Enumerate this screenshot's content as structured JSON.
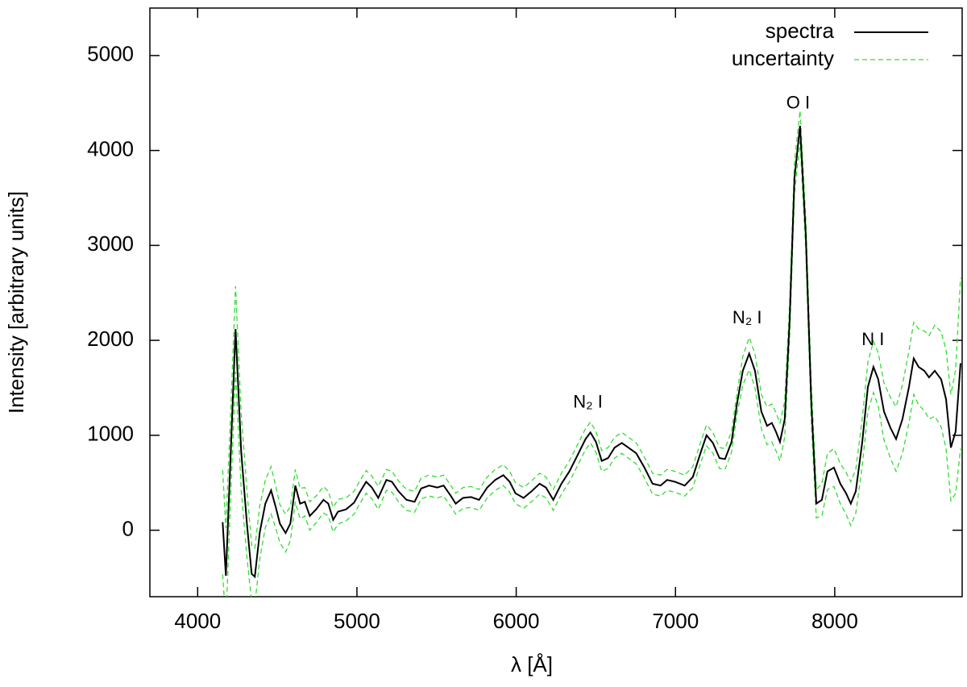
{
  "chart_data": {
    "type": "line",
    "xlabel": "λ [Å]",
    "ylabel": "Intensity [arbitrary units]",
    "xlim": [
      3700,
      8800
    ],
    "xticks": [
      4000,
      5000,
      6000,
      7000,
      8000
    ],
    "ylim": [
      -700,
      5500
    ],
    "yticks": [
      0,
      1000,
      2000,
      3000,
      4000,
      5000
    ],
    "legend": "upper right",
    "x": [
      4157,
      4177,
      4208,
      4238,
      4273,
      4309,
      4339,
      4359,
      4390,
      4425,
      4461,
      4491,
      4516,
      4552,
      4582,
      4613,
      4643,
      4673,
      4704,
      4744,
      4790,
      4820,
      4851,
      4881,
      4932,
      4982,
      5018,
      5058,
      5094,
      5134,
      5185,
      5220,
      5261,
      5311,
      5362,
      5403,
      5453,
      5504,
      5544,
      5590,
      5620,
      5666,
      5716,
      5767,
      5818,
      5868,
      5919,
      5959,
      5995,
      6046,
      6096,
      6147,
      6187,
      6233,
      6284,
      6334,
      6385,
      6435,
      6466,
      6501,
      6537,
      6577,
      6618,
      6663,
      6704,
      6754,
      6805,
      6856,
      6906,
      6947,
      6997,
      7058,
      7109,
      7160,
      7195,
      7235,
      7276,
      7311,
      7352,
      7387,
      7423,
      7463,
      7499,
      7539,
      7575,
      7605,
      7630,
      7656,
      7686,
      7716,
      7747,
      7782,
      7818,
      7853,
      7884,
      7919,
      7954,
      7995,
      8035,
      8071,
      8101,
      8132,
      8172,
      8208,
      8243,
      8273,
      8309,
      8349,
      8385,
      8425,
      8466,
      8496,
      8527,
      8562,
      8592,
      8628,
      8668,
      8699,
      8729,
      8759,
      8790
    ],
    "series": [
      {
        "name": "spectra",
        "color": "#000000",
        "values": [
          85,
          -480,
          830,
          2120,
          830,
          70,
          -460,
          -490,
          -20,
          280,
          420,
          240,
          70,
          -30,
          70,
          470,
          280,
          300,
          150,
          220,
          320,
          280,
          110,
          195,
          220,
          290,
          400,
          510,
          450,
          340,
          530,
          510,
          410,
          320,
          300,
          440,
          470,
          450,
          470,
          360,
          280,
          340,
          350,
          320,
          450,
          530,
          580,
          510,
          390,
          340,
          410,
          490,
          450,
          320,
          490,
          620,
          790,
          960,
          1030,
          930,
          730,
          760,
          870,
          920,
          870,
          810,
          660,
          490,
          470,
          530,
          510,
          470,
          560,
          830,
          1000,
          920,
          760,
          750,
          930,
          1340,
          1680,
          1860,
          1680,
          1250,
          1100,
          1130,
          1040,
          930,
          1170,
          2190,
          3710,
          4260,
          3120,
          1340,
          280,
          320,
          620,
          660,
          490,
          390,
          280,
          410,
          920,
          1510,
          1720,
          1590,
          1250,
          1080,
          960,
          1170,
          1510,
          1810,
          1720,
          1680,
          1610,
          1680,
          1590,
          1380,
          870,
          1040,
          1760
        ]
      },
      {
        "name": "uncertainty",
        "color": "#33dd33",
        "values": [
          550,
          500,
          450,
          450,
          400,
          350,
          300,
          300,
          280,
          250,
          250,
          220,
          200,
          200,
          180,
          170,
          160,
          150,
          150,
          140,
          140,
          130,
          130,
          130,
          120,
          120,
          120,
          120,
          120,
          120,
          110,
          110,
          110,
          110,
          110,
          110,
          110,
          110,
          110,
          110,
          110,
          110,
          110,
          110,
          110,
          110,
          110,
          110,
          110,
          110,
          110,
          110,
          110,
          110,
          110,
          110,
          110,
          110,
          110,
          110,
          110,
          110,
          110,
          110,
          110,
          110,
          110,
          110,
          110,
          110,
          110,
          110,
          110,
          110,
          110,
          110,
          110,
          110,
          110,
          110,
          150,
          170,
          180,
          180,
          200,
          200,
          200,
          200,
          190,
          180,
          170,
          160,
          170,
          200,
          150,
          170,
          190,
          200,
          210,
          220,
          230,
          230,
          250,
          260,
          270,
          280,
          300,
          320,
          340,
          360,
          380,
          380,
          400,
          420,
          440,
          480,
          500,
          520,
          560,
          650,
          900
        ]
      }
    ],
    "annotations": [
      {
        "text": "N₂ I",
        "x": 6450,
        "y": 1340
      },
      {
        "text": "N₂ I",
        "x": 7450,
        "y": 2230
      },
      {
        "text": "O I",
        "x": 7770,
        "y": 4490
      },
      {
        "text": "N I",
        "x": 8240,
        "y": 2000
      }
    ]
  }
}
